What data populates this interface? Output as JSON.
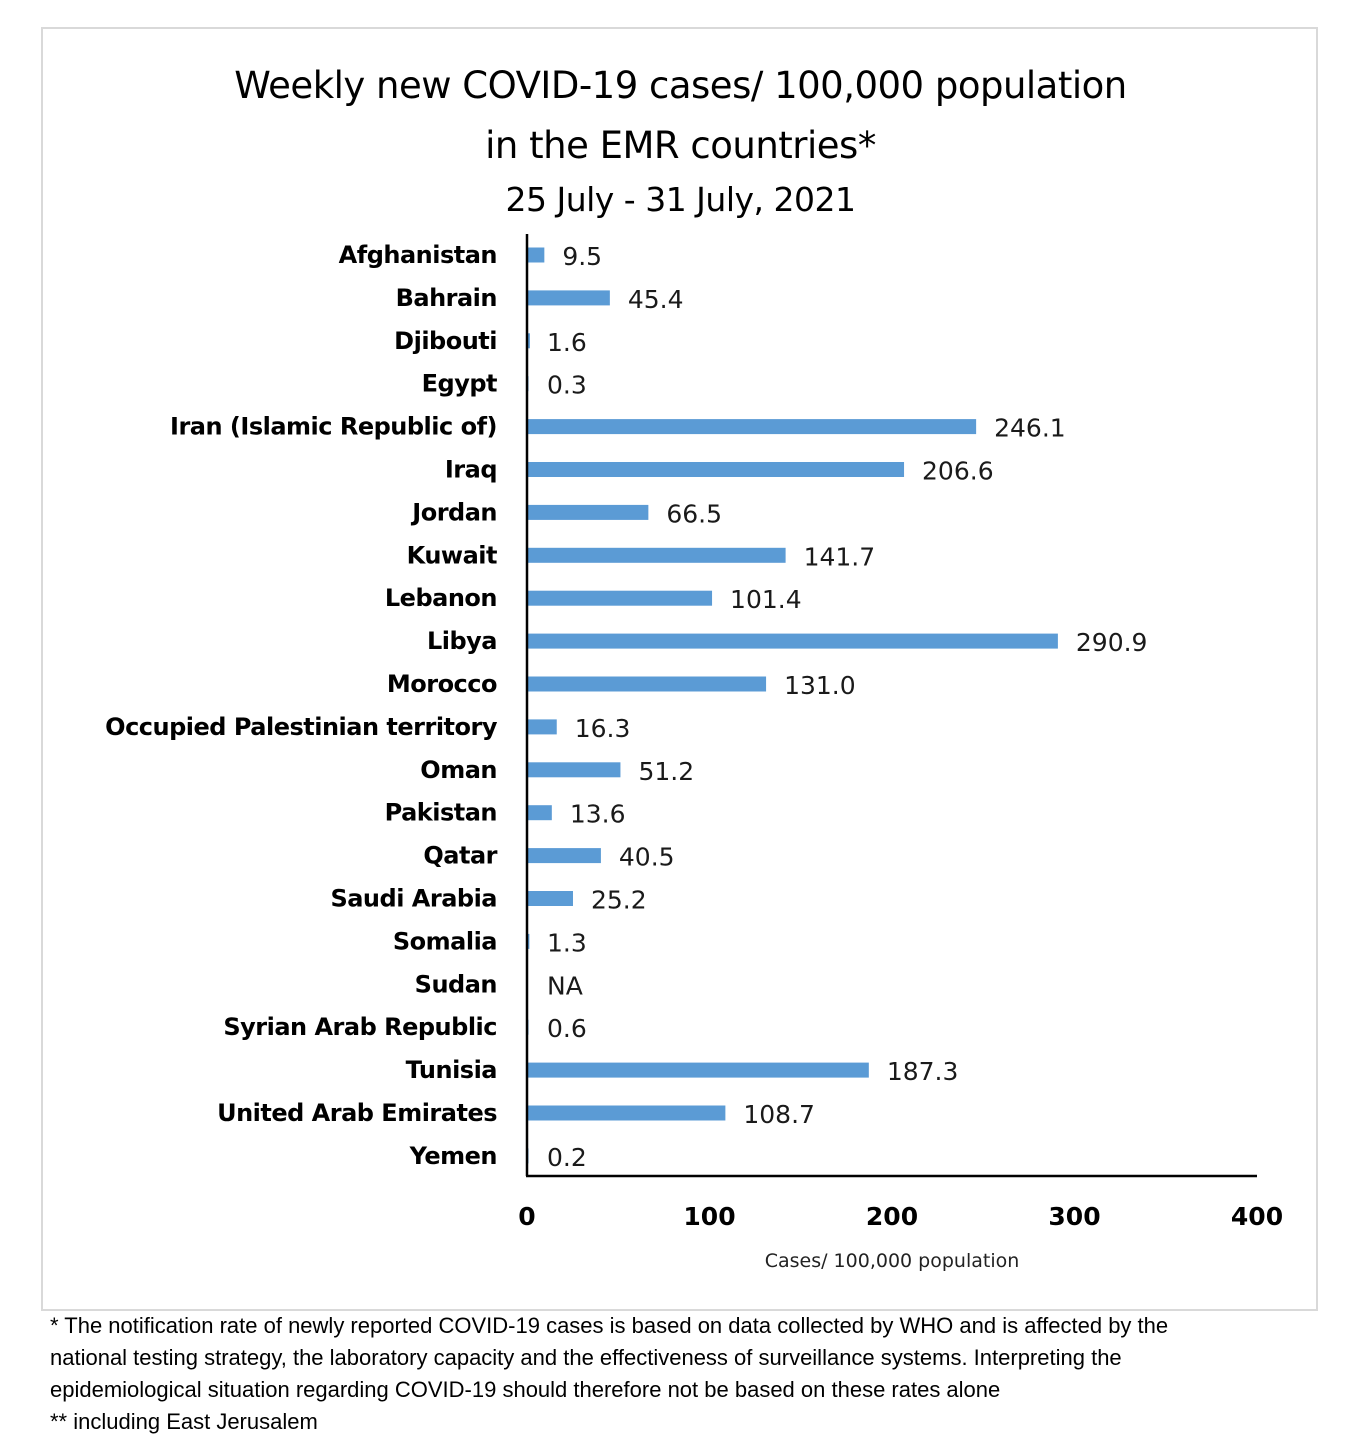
{
  "chart_data": {
    "type": "bar",
    "orientation": "horizontal",
    "title": "Weekly new COVID-19 cases/ 100,000 population",
    "title_line2": "in the EMR countries*",
    "subtitle": "25 July - 31 July, 2021",
    "xlabel": "Cases/ 100,000 population",
    "ylabel": "",
    "xlim": [
      0,
      400
    ],
    "xticks": [
      "0",
      "100",
      "200",
      "300",
      "400"
    ],
    "grid": false,
    "bar_color": "#5b9bd5",
    "categories": [
      "Afghanistan",
      "Bahrain",
      "Djibouti",
      "Egypt",
      "Iran (Islamic Republic of)",
      "Iraq",
      "Jordan",
      "Kuwait",
      "Lebanon",
      "Libya",
      "Morocco",
      "Occupied Palestinian territory",
      "Oman",
      "Pakistan",
      "Qatar",
      "Saudi Arabia",
      "Somalia",
      "Sudan",
      "Syrian Arab Republic",
      "Tunisia",
      "United Arab Emirates",
      "Yemen"
    ],
    "values": [
      9.5,
      45.4,
      1.6,
      0.3,
      246.1,
      206.6,
      66.5,
      141.7,
      101.4,
      290.9,
      131.0,
      16.3,
      51.2,
      13.6,
      40.5,
      25.2,
      1.3,
      null,
      0.6,
      187.3,
      108.7,
      0.2
    ],
    "labels": [
      "9.5",
      "45.4",
      "1.6",
      "0.3",
      "246.1",
      "206.6",
      "66.5",
      "141.7",
      "101.4",
      "290.9",
      "131.0",
      "16.3",
      "51.2",
      "13.6",
      "40.5",
      "25.2",
      "1.3",
      "NA",
      "0.6",
      "187.3",
      "108.7",
      "0.2"
    ]
  },
  "footnote": {
    "line1": "* The notification rate of newly reported COVID-19 cases is based on data collected by WHO and is affected by the",
    "line2": "national testing strategy, the laboratory capacity and the effectiveness of surveillance systems. Interpreting the",
    "line3": "epidemiological situation regarding COVID-19 should therefore not be based on these rates alone",
    "line4": "** including East Jerusalem"
  }
}
